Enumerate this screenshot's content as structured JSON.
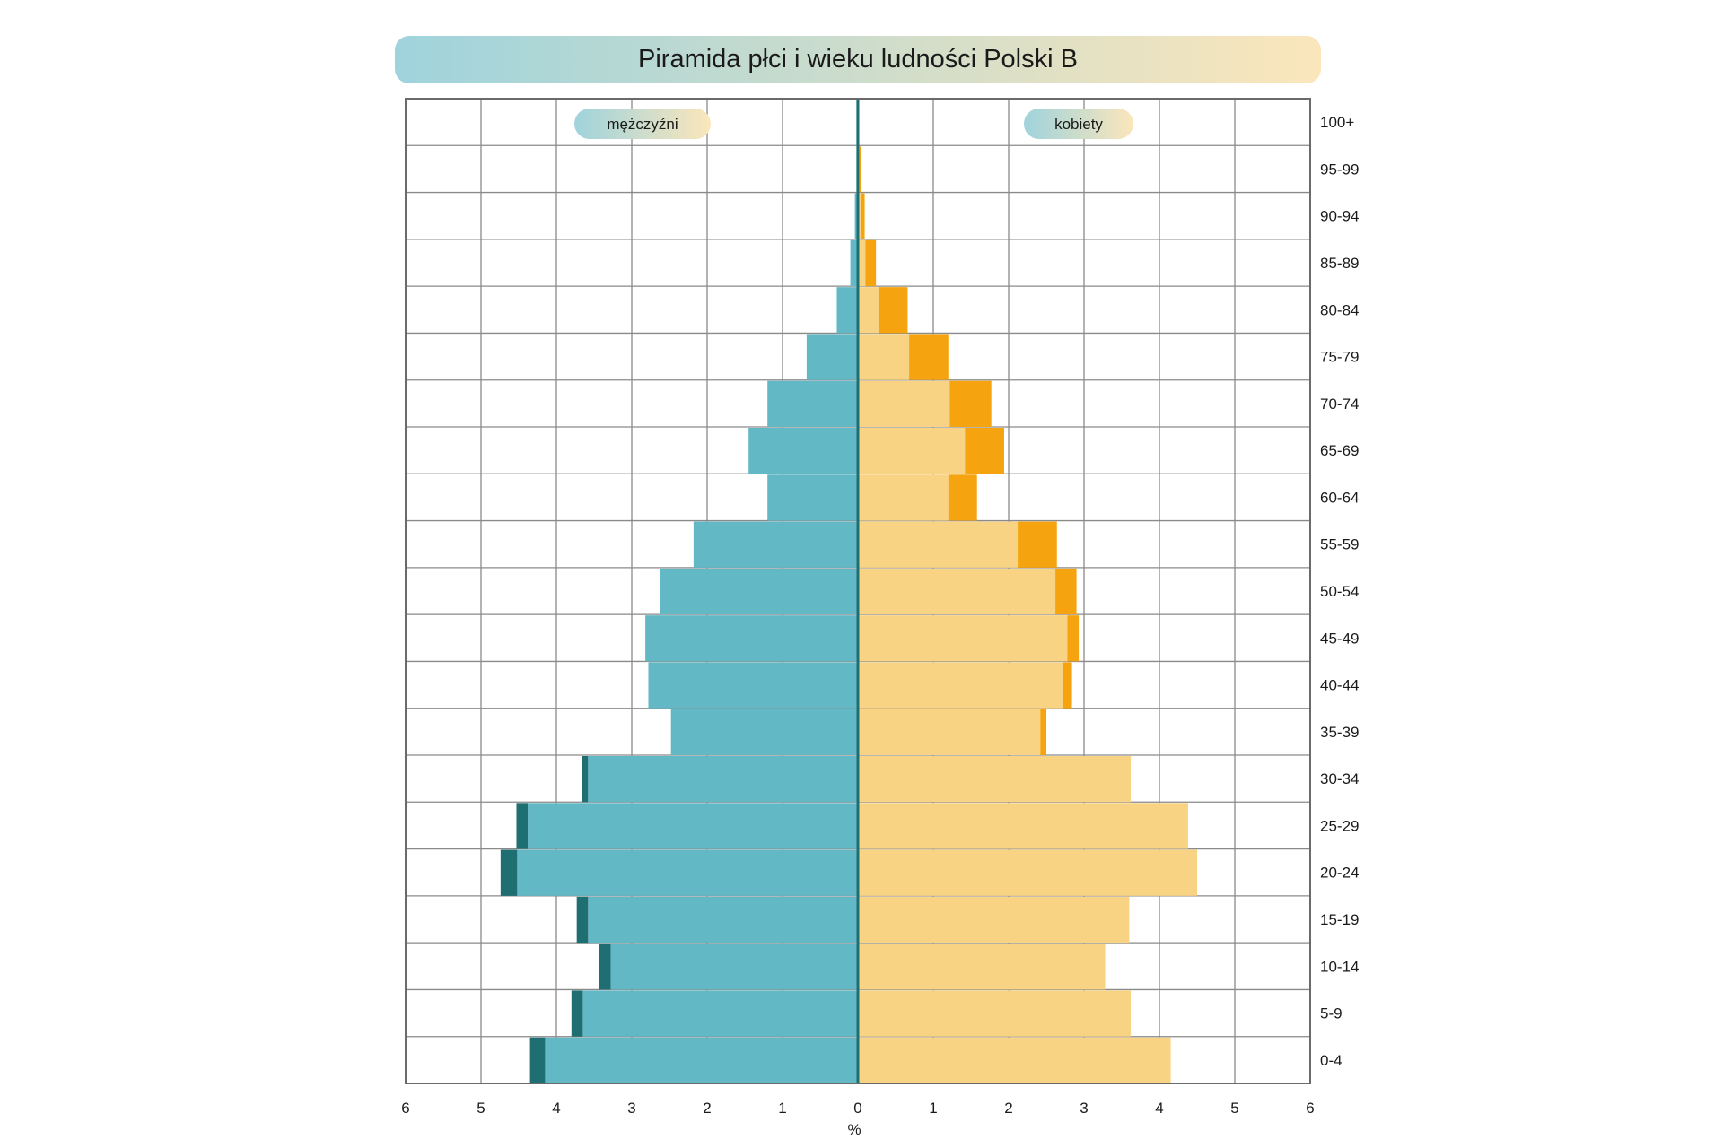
{
  "chart_data": {
    "type": "bar",
    "title": "Piramida płci i wieku ludności Polski B",
    "xlabel": "%",
    "x_ticks": [
      "6",
      "5",
      "4",
      "3",
      "2",
      "1",
      "0",
      "1",
      "2",
      "3",
      "4",
      "5",
      "6"
    ],
    "xlim": [
      -6,
      6
    ],
    "grid": true,
    "legend": {
      "left": "mężczyźni",
      "right": "kobiety",
      "placement": "top"
    },
    "categories": [
      "0-4",
      "5-9",
      "10-14",
      "15-19",
      "20-24",
      "25-29",
      "30-34",
      "35-39",
      "40-44",
      "45-49",
      "50-54",
      "55-59",
      "60-64",
      "65-69",
      "70-74",
      "75-79",
      "80-84",
      "85-89",
      "90-94",
      "95-99",
      "100+"
    ],
    "series": [
      {
        "name": "mężczyźni",
        "values": [
          4.15,
          3.65,
          3.28,
          3.58,
          4.52,
          4.38,
          3.58,
          2.48,
          2.78,
          2.82,
          2.62,
          2.18,
          1.2,
          1.45,
          1.2,
          0.68,
          0.28,
          0.1,
          0.04,
          0.02,
          0.02
        ],
        "excess": [
          0.2,
          0.15,
          0.15,
          0.15,
          0.22,
          0.15,
          0.08,
          0,
          0,
          0,
          0,
          0,
          0,
          0,
          0,
          0,
          0,
          0,
          0,
          0,
          0
        ]
      },
      {
        "name": "kobiety",
        "values": [
          4.15,
          3.62,
          3.28,
          3.6,
          4.5,
          4.38,
          3.62,
          2.42,
          2.72,
          2.78,
          2.62,
          2.12,
          1.2,
          1.42,
          1.22,
          0.68,
          0.28,
          0.1,
          0.04,
          0.02,
          0.0
        ],
        "excess": [
          0,
          0,
          0,
          0,
          0,
          0,
          0,
          0.08,
          0.12,
          0.15,
          0.28,
          0.52,
          0.38,
          0.52,
          0.55,
          0.52,
          0.38,
          0.14,
          0.05,
          0.02,
          0
        ]
      }
    ],
    "colors": {
      "male": "#63b8c6",
      "male_excess": "#1f6f72",
      "female": "#f9d384",
      "female_excess": "#f5a30f",
      "grid": "#8a8a8a",
      "title_left": "#9fd3dc",
      "title_right": "#fbe6bb"
    }
  }
}
